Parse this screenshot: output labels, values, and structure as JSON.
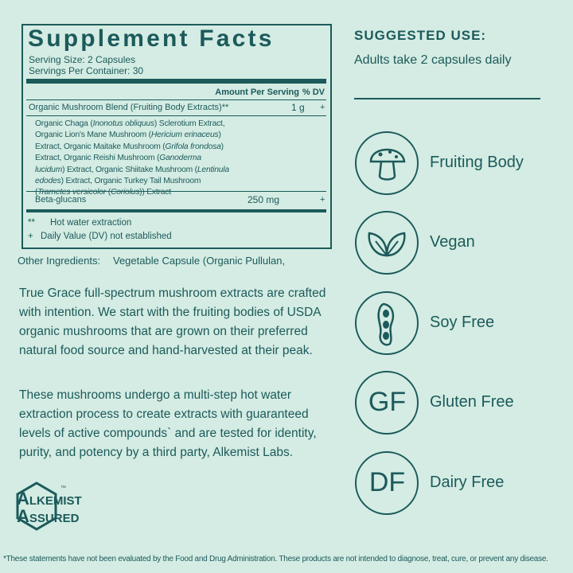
{
  "supplement_facts": {
    "title": "Supplement Facts",
    "serving_size": "Serving Size: 2 Capsules",
    "servings_per_container": "Servings Per Container: 30",
    "header": {
      "amount": "Amount Per Serving",
      "dv": "% DV"
    },
    "rows": [
      {
        "name": "Organic Mushroom Blend (Fruiting Body Extracts)**",
        "amount": "1 g",
        "dv": "+"
      },
      {
        "name": "Beta-glucans",
        "amount": "250 mg",
        "dv": "+"
      }
    ],
    "blend_segments": [
      "Organic Chaga (",
      "Inonotus obliquus",
      ") Sclerotium Extract, Organic Lion's Mane Mushroom (",
      "Hericium erinaceus",
      ") Extract, Organic Maitake Mushroom (",
      "Grifola frondosa",
      ") Extract, Organic Reishi Mushroom (",
      "Ganoderma lucidum",
      ") Extract, Organic Shiitake Mushroom (",
      "Lentinula edodes",
      ") Extract, Organic Turkey Tail Mushroom (",
      "Trametes versicolor",
      " (",
      "Coriolus",
      ")) Extract"
    ],
    "footnotes": [
      {
        "symbol": "**",
        "text": "Hot water extraction"
      },
      {
        "symbol": "+",
        "text": "Daily Value (DV) not established"
      }
    ]
  },
  "other_ingredients": {
    "label": "Other Ingredients:",
    "text": "Vegetable Capsule (Organic Pullulan,"
  },
  "paragraphs": [
    "True Grace full-spectrum mushroom extracts are crafted with intention. We start with the fruiting bodies of USDA organic mushrooms that are grown on their preferred natural food source and hand-harvested at their peak.",
    "These mushrooms undergo a multi-step hot water extraction process to create extracts with guaranteed levels of active compounds` and are tested for identity, purity, and potency by a third party, Alkemist Labs."
  ],
  "logo": {
    "line1_initial": "A",
    "line1_rest": "LKEMIST",
    "line2_initial": "A",
    "line2_rest": "SSURED",
    "trademark": "™"
  },
  "suggested_use": {
    "title": "SUGGESTED USE:",
    "text": "Adults take 2 capsules daily"
  },
  "features": [
    {
      "label": "Fruiting Body"
    },
    {
      "label": "Vegan"
    },
    {
      "label": "Soy Free"
    },
    {
      "icon": "GF",
      "label": "Gluten Free"
    },
    {
      "icon": "DF",
      "label": "Dairy Free"
    }
  ],
  "disclaimer": "*These statements have not been evaluated by the Food and Drug Administration. These products are not intended to diagnose, treat, cure, or prevent any disease."
}
